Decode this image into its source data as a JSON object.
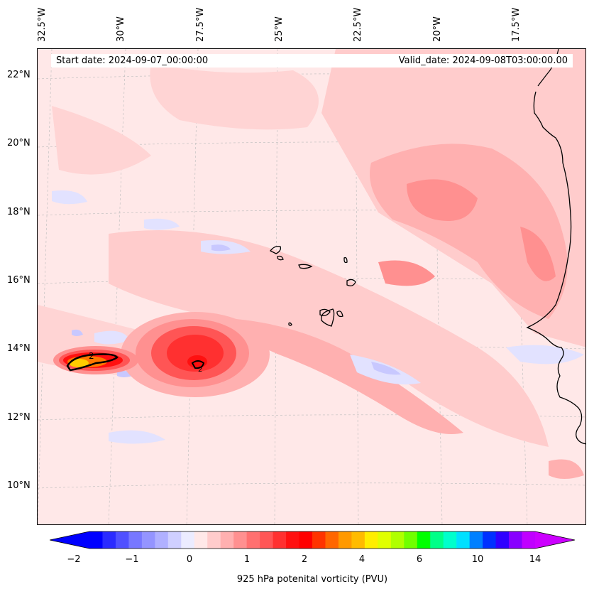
{
  "header": {
    "start_date": "Start date: 2024-09-07_00:00:00",
    "valid_date": "Valid_date: 2024-09-08T03:00:00.00"
  },
  "lon_labels": [
    "32.5°W",
    "30°W",
    "27.5°W",
    "25°W",
    "22.5°W",
    "20°W",
    "17.5°W"
  ],
  "lat_labels": [
    "22°N",
    "20°N",
    "18°N",
    "16°N",
    "14°N",
    "12°N",
    "10°N"
  ],
  "colorbar": {
    "label": "925 hPa potenital vorticity (PVU)",
    "ticks": [
      "−2",
      "−1",
      "0",
      "1",
      "2",
      "4",
      "6",
      "10",
      "14"
    ],
    "colors": [
      "#0000ff",
      "#2a2aff",
      "#5050ff",
      "#7777ff",
      "#9494ff",
      "#b0b0ff",
      "#cfcfff",
      "#ececff",
      "#ffe8e8",
      "#ffcccc",
      "#ffb0b0",
      "#ff9090",
      "#ff7070",
      "#ff5555",
      "#ff3030",
      "#ff1010",
      "#ff0000",
      "#ff3300",
      "#ff6600",
      "#ff9900",
      "#ffbb00",
      "#ffee00",
      "#e0ff00",
      "#b0ff00",
      "#70ff00",
      "#00ff00",
      "#00ff88",
      "#00ffcc",
      "#00e0ff",
      "#0080ff",
      "#0030ff",
      "#3000ff",
      "#8800ff",
      "#c000ff"
    ],
    "under_color": "#0000ff",
    "over_color": "#cc00ff"
  },
  "contour_labels": [
    "2",
    "2"
  ]
}
